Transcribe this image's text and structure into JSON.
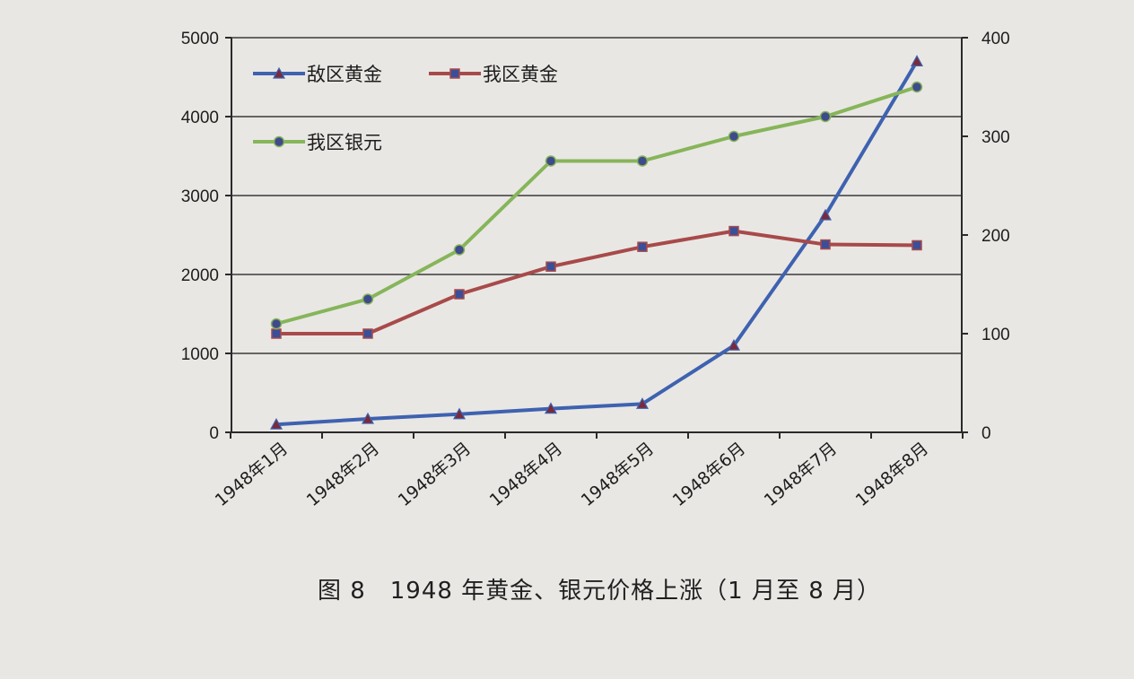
{
  "chart_data": {
    "type": "line",
    "caption": "图 8　1948 年黄金、银元价格上涨（1 月至 8 月）",
    "categories": [
      "1948年1月",
      "1948年2月",
      "1948年3月",
      "1948年4月",
      "1948年5月",
      "1948年6月",
      "1948年7月",
      "1948年8月"
    ],
    "y_left": {
      "min": 0,
      "max": 5000,
      "ticks": [
        "0",
        "1000",
        "2000",
        "3000",
        "4000",
        "5000"
      ]
    },
    "y_right": {
      "min": 0,
      "max": 400,
      "ticks": [
        "0",
        "100",
        "200",
        "300",
        "400"
      ]
    },
    "grid": true,
    "legend_position": "top-left",
    "series": [
      {
        "name": "敌区黄金",
        "axis": "left",
        "color": "#3e62b0",
        "marker": "triangle",
        "values": [
          100,
          170,
          230,
          300,
          360,
          1100,
          2750,
          4700
        ]
      },
      {
        "name": "我区黄金",
        "axis": "left",
        "color": "#a84a4a",
        "marker": "square",
        "values": [
          1250,
          1250,
          1750,
          2100,
          2350,
          2550,
          2380,
          2370
        ]
      },
      {
        "name": "我区银元",
        "axis": "right",
        "color": "#86b55a",
        "marker": "circle",
        "values": [
          110,
          135,
          185,
          275,
          275,
          300,
          320,
          350
        ]
      }
    ]
  }
}
